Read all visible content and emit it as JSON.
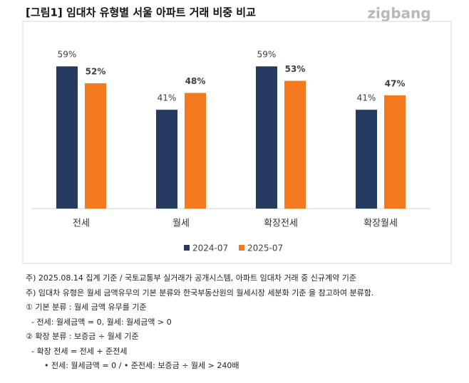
{
  "title": "[그림1] 임대차 유형별 서울 아파트 거래 비중 비교",
  "logo": "zigbang",
  "chart_data": {
    "type": "bar",
    "categories": [
      "전세",
      "월세",
      "확장전세",
      "확장월세"
    ],
    "series": [
      {
        "name": "2024-07",
        "color": "#243a5e",
        "values": [
          59,
          41,
          59,
          41
        ],
        "value_labels": [
          "59%",
          "41%",
          "59%",
          "41%"
        ]
      },
      {
        "name": "2025-07",
        "color": "#f47a20",
        "values": [
          52,
          48,
          53,
          47
        ],
        "value_labels": [
          "52%",
          "48%",
          "53%",
          "47%"
        ]
      }
    ],
    "ylim": [
      0,
      70
    ],
    "legend": "bottom"
  },
  "notes": [
    "주) 2025.08.14 집계 기준 / 국토교통부 실거래가 공개시스템, 아파트 임대차 거래 중 신규계약 기준",
    "주) 임대차 유형은 월세 금액유무의 기본 분류와 한국부동산원의 월세시장 세분화 기준 을 참고하여 분류함.",
    "① 기본 분류 : 월세 금액 유무를 기준",
    "- 전세: 월세금액 = 0, 월세: 월세금액 > 0",
    "② 확장 분류 : 보증금 ÷ 월세 기준",
    "- 확장 전세 = 전세 + 준전세",
    "• 전세: 월세금액 = 0 / • 준전세: 보증금 ÷ 월세 > 240배"
  ]
}
